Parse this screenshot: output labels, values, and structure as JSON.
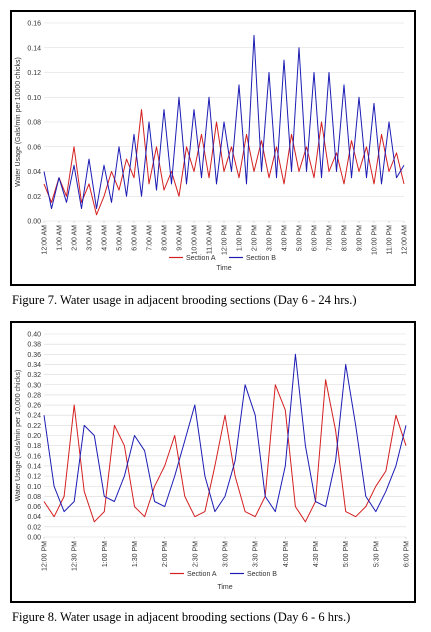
{
  "captions": {
    "fig7": "Figure 7.  Water usage in adjacent brooding sections (Day 6 - 24 hrs.)",
    "fig8": "Figure 8.  Water usage in adjacent brooding sections (Day 6 - 6 hrs.)"
  },
  "colors": {
    "section_a": "#d42020",
    "section_b": "#1c1cb4"
  },
  "chart_data": [
    {
      "type": "line",
      "title": "",
      "xlabel": "Time",
      "ylabel": "Water Usage (Gals/min per 10000 chicks)",
      "ylim": [
        0,
        0.16
      ],
      "yticks": [
        "0.00",
        "0.02",
        "0.04",
        "0.06",
        "0.08",
        "0.10",
        "0.12",
        "0.14",
        "0.16"
      ],
      "xticks": [
        "12:00 AM",
        "1:00 AM",
        "2:00 AM",
        "3:00 AM",
        "4:00 AM",
        "5:00 AM",
        "6:00 AM",
        "7:00 AM",
        "8:00 AM",
        "9:00 AM",
        "10:00 AM",
        "11:00 AM",
        "12:00 PM",
        "1:00 PM",
        "2:00 PM",
        "3:00 PM",
        "4:00 PM",
        "5:00 PM",
        "6:00 PM",
        "7:00 PM",
        "8:00 PM",
        "9:00 PM",
        "10:00 PM",
        "11:00 PM",
        "12:00 AM"
      ],
      "grid": "horizontal",
      "legend": "bottom",
      "series": [
        {
          "name": "Section A",
          "x": [
            0,
            0.5,
            1,
            1.5,
            2,
            2.5,
            3,
            3.5,
            4,
            4.5,
            5,
            5.5,
            6,
            6.5,
            7,
            7.5,
            8,
            8.5,
            9,
            9.5,
            10,
            10.5,
            11,
            11.5,
            12,
            12.5,
            13,
            13.5,
            14,
            14.5,
            15,
            15.5,
            16,
            16.5,
            17,
            17.5,
            18,
            18.5,
            19,
            19.5,
            20,
            20.5,
            21,
            21.5,
            22,
            22.5,
            23,
            23.5,
            24
          ],
          "values": [
            0.03,
            0.015,
            0.035,
            0.02,
            0.06,
            0.015,
            0.03,
            0.005,
            0.02,
            0.04,
            0.025,
            0.05,
            0.035,
            0.09,
            0.03,
            0.06,
            0.025,
            0.04,
            0.02,
            0.06,
            0.04,
            0.07,
            0.035,
            0.08,
            0.04,
            0.06,
            0.035,
            0.07,
            0.04,
            0.065,
            0.035,
            0.06,
            0.03,
            0.07,
            0.04,
            0.06,
            0.035,
            0.08,
            0.04,
            0.055,
            0.03,
            0.065,
            0.04,
            0.06,
            0.03,
            0.07,
            0.04,
            0.055,
            0.03
          ]
        },
        {
          "name": "Section B",
          "x": [
            0,
            0.5,
            1,
            1.5,
            2,
            2.5,
            3,
            3.5,
            4,
            4.5,
            5,
            5.5,
            6,
            6.5,
            7,
            7.5,
            8,
            8.5,
            9,
            9.5,
            10,
            10.5,
            11,
            11.5,
            12,
            12.5,
            13,
            13.5,
            14,
            14.5,
            15,
            15.5,
            16,
            16.5,
            17,
            17.5,
            18,
            18.5,
            19,
            19.5,
            20,
            20.5,
            21,
            21.5,
            22,
            22.5,
            23,
            23.5,
            24
          ],
          "values": [
            0.04,
            0.01,
            0.035,
            0.015,
            0.045,
            0.01,
            0.05,
            0.01,
            0.045,
            0.015,
            0.06,
            0.02,
            0.07,
            0.02,
            0.08,
            0.025,
            0.09,
            0.03,
            0.1,
            0.03,
            0.09,
            0.035,
            0.1,
            0.03,
            0.08,
            0.04,
            0.11,
            0.03,
            0.15,
            0.04,
            0.12,
            0.035,
            0.13,
            0.04,
            0.14,
            0.04,
            0.12,
            0.035,
            0.12,
            0.04,
            0.11,
            0.035,
            0.1,
            0.035,
            0.095,
            0.03,
            0.08,
            0.035,
            0.045
          ]
        }
      ]
    },
    {
      "type": "line",
      "title": "",
      "xlabel": "Time",
      "ylabel": "Water Usage (Gals/min per 10,000 chicks)",
      "ylim": [
        0,
        0.4
      ],
      "yticks": [
        "0.00",
        "0.02",
        "0.04",
        "0.06",
        "0.08",
        "0.10",
        "0.12",
        "0.14",
        "0.16",
        "0.18",
        "0.20",
        "0.22",
        "0.24",
        "0.26",
        "0.28",
        "0.30",
        "0.32",
        "0.34",
        "0.36",
        "0.38",
        "0.40"
      ],
      "xticks": [
        "12:00 PM",
        "12:30 PM",
        "1:00 PM",
        "1:30 PM",
        "2:00 PM",
        "2:30 PM",
        "3:00 PM",
        "3:30 PM",
        "4:00 PM",
        "4:30 PM",
        "5:00 PM",
        "5:30 PM",
        "6:00 PM"
      ],
      "grid": "horizontal",
      "legend": "bottom",
      "series": [
        {
          "name": "Section A",
          "x": [
            0,
            10,
            20,
            30,
            40,
            50,
            60,
            70,
            80,
            90,
            100,
            110,
            120,
            130,
            140,
            150,
            160,
            170,
            180,
            190,
            200,
            210,
            220,
            230,
            240,
            250,
            260,
            270,
            280,
            290,
            300,
            310,
            320,
            330,
            340,
            350,
            360
          ],
          "values": [
            0.07,
            0.04,
            0.08,
            0.26,
            0.09,
            0.03,
            0.05,
            0.22,
            0.18,
            0.06,
            0.04,
            0.1,
            0.14,
            0.2,
            0.08,
            0.04,
            0.05,
            0.14,
            0.24,
            0.12,
            0.05,
            0.04,
            0.08,
            0.3,
            0.25,
            0.06,
            0.03,
            0.07,
            0.31,
            0.21,
            0.05,
            0.04,
            0.06,
            0.1,
            0.13,
            0.24,
            0.18
          ]
        },
        {
          "name": "Section B",
          "x": [
            0,
            10,
            20,
            30,
            40,
            50,
            60,
            70,
            80,
            90,
            100,
            110,
            120,
            130,
            140,
            150,
            160,
            170,
            180,
            190,
            200,
            210,
            220,
            230,
            240,
            250,
            260,
            270,
            280,
            290,
            300,
            310,
            320,
            330,
            340,
            350,
            360
          ],
          "values": [
            0.24,
            0.1,
            0.05,
            0.07,
            0.22,
            0.2,
            0.08,
            0.07,
            0.12,
            0.2,
            0.17,
            0.07,
            0.06,
            0.12,
            0.19,
            0.26,
            0.12,
            0.05,
            0.08,
            0.15,
            0.3,
            0.24,
            0.08,
            0.05,
            0.14,
            0.36,
            0.18,
            0.07,
            0.06,
            0.15,
            0.34,
            0.22,
            0.08,
            0.05,
            0.09,
            0.14,
            0.22
          ]
        }
      ]
    }
  ]
}
